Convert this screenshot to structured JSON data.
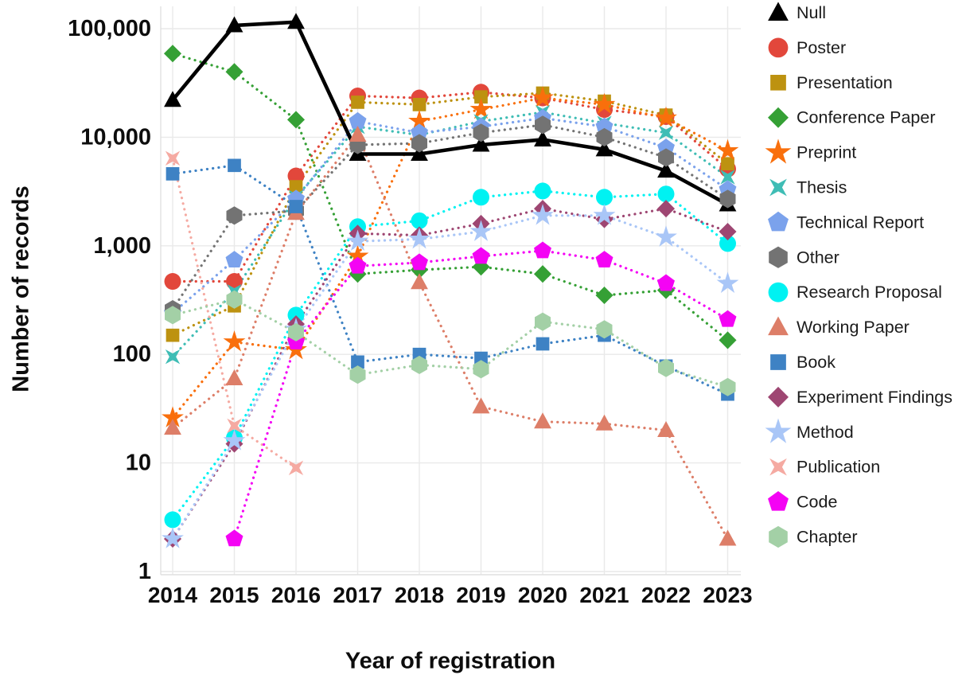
{
  "figure": {
    "y_axis_title": "Number of records",
    "x_axis_title": "Year of registration"
  },
  "chart_data": {
    "type": "line",
    "x_scale": "categorical-years",
    "y_scale": "log",
    "xlabel": "Year of registration",
    "ylabel": "Number of records",
    "ylim": [
      1,
      100000
    ],
    "grid": true,
    "legend_position": "right",
    "x": [
      "2014",
      "2015",
      "2016",
      "2017",
      "2018",
      "2019",
      "2020",
      "2021",
      "2022",
      "2023"
    ],
    "yticks": {
      "values": [
        1,
        10,
        100,
        1000,
        10000,
        100000
      ],
      "labels": [
        "1",
        "10",
        "100",
        "1,000",
        "10,000",
        "100,000"
      ]
    },
    "series": [
      {
        "name": "Null",
        "color": "#000000",
        "marker": "triangle",
        "line": "solid",
        "values": [
          22000,
          107000,
          115000,
          7000,
          7000,
          8500,
          9500,
          7700,
          4900,
          2400
        ]
      },
      {
        "name": "Poster",
        "color": "#e2473b",
        "marker": "circle",
        "line": "dotted",
        "values": [
          470,
          470,
          4400,
          24000,
          23000,
          26000,
          23000,
          18000,
          15500,
          5100
        ]
      },
      {
        "name": "Presentation",
        "color": "#bd9210",
        "marker": "square",
        "line": "dotted",
        "values": [
          150,
          280,
          3500,
          21000,
          20000,
          23500,
          25500,
          21500,
          16000,
          5700
        ]
      },
      {
        "name": "Conference Paper",
        "color": "#35a035",
        "marker": "diamond",
        "line": "dotted",
        "values": [
          59000,
          40000,
          14500,
          550,
          600,
          640,
          550,
          350,
          390,
          135
        ]
      },
      {
        "name": "Preprint",
        "color": "#f96f0c",
        "marker": "star",
        "line": "dotted",
        "values": [
          26,
          130,
          110,
          800,
          14000,
          18000,
          23000,
          20000,
          15000,
          7500
        ]
      },
      {
        "name": "Thesis",
        "color": "#3fbdb5",
        "marker": "x",
        "line": "dotted",
        "values": [
          95,
          380,
          2800,
          12500,
          10500,
          14000,
          17000,
          13500,
          11000,
          4300
        ]
      },
      {
        "name": "Technical Report",
        "color": "#7ba2ec",
        "marker": "pentagon",
        "line": "dotted",
        "values": [
          240,
          740,
          2700,
          14000,
          11000,
          12500,
          15000,
          12500,
          8000,
          3300
        ]
      },
      {
        "name": "Other",
        "color": "#737373",
        "marker": "hexagon",
        "line": "dotted",
        "values": [
          260,
          1900,
          2100,
          8500,
          8800,
          11000,
          13000,
          10000,
          6500,
          2700
        ]
      },
      {
        "name": "Research Proposal",
        "color": "#00f2f2",
        "marker": "circle",
        "line": "dotted",
        "values": [
          3,
          17,
          230,
          1500,
          1700,
          2800,
          3200,
          2800,
          3000,
          1050
        ]
      },
      {
        "name": "Working Paper",
        "color": "#dd7e68",
        "marker": "triangle",
        "line": "dotted",
        "values": [
          21,
          60,
          2000,
          10500,
          460,
          33,
          24,
          23,
          20,
          2
        ]
      },
      {
        "name": "Book",
        "color": "#3e82c4",
        "marker": "square",
        "line": "dotted",
        "values": [
          4600,
          5500,
          2300,
          85,
          100,
          92,
          125,
          150,
          78,
          43
        ]
      },
      {
        "name": "Experiment Findings",
        "color": "#9e4672",
        "marker": "diamond",
        "line": "dotted",
        "values": [
          2,
          15,
          190,
          1300,
          1250,
          1600,
          2200,
          1750,
          2200,
          1350
        ]
      },
      {
        "name": "Method",
        "color": "#a9c6f7",
        "marker": "star",
        "line": "dotted",
        "values": [
          2,
          16,
          170,
          1100,
          1150,
          1350,
          1900,
          1900,
          1200,
          450
        ]
      },
      {
        "name": "Publication",
        "color": "#f5aaa2",
        "marker": "x",
        "line": "dotted",
        "values": [
          6400,
          22,
          9,
          null,
          null,
          null,
          null,
          null,
          null,
          null
        ]
      },
      {
        "name": "Code",
        "color": "#f403f4",
        "marker": "pentagon",
        "line": "dotted",
        "values": [
          null,
          2,
          130,
          650,
          700,
          800,
          900,
          740,
          450,
          210
        ]
      },
      {
        "name": "Chapter",
        "color": "#a3d0a6",
        "marker": "hexagon",
        "line": "dotted",
        "values": [
          230,
          320,
          160,
          65,
          80,
          73,
          200,
          170,
          75,
          50
        ]
      }
    ]
  }
}
